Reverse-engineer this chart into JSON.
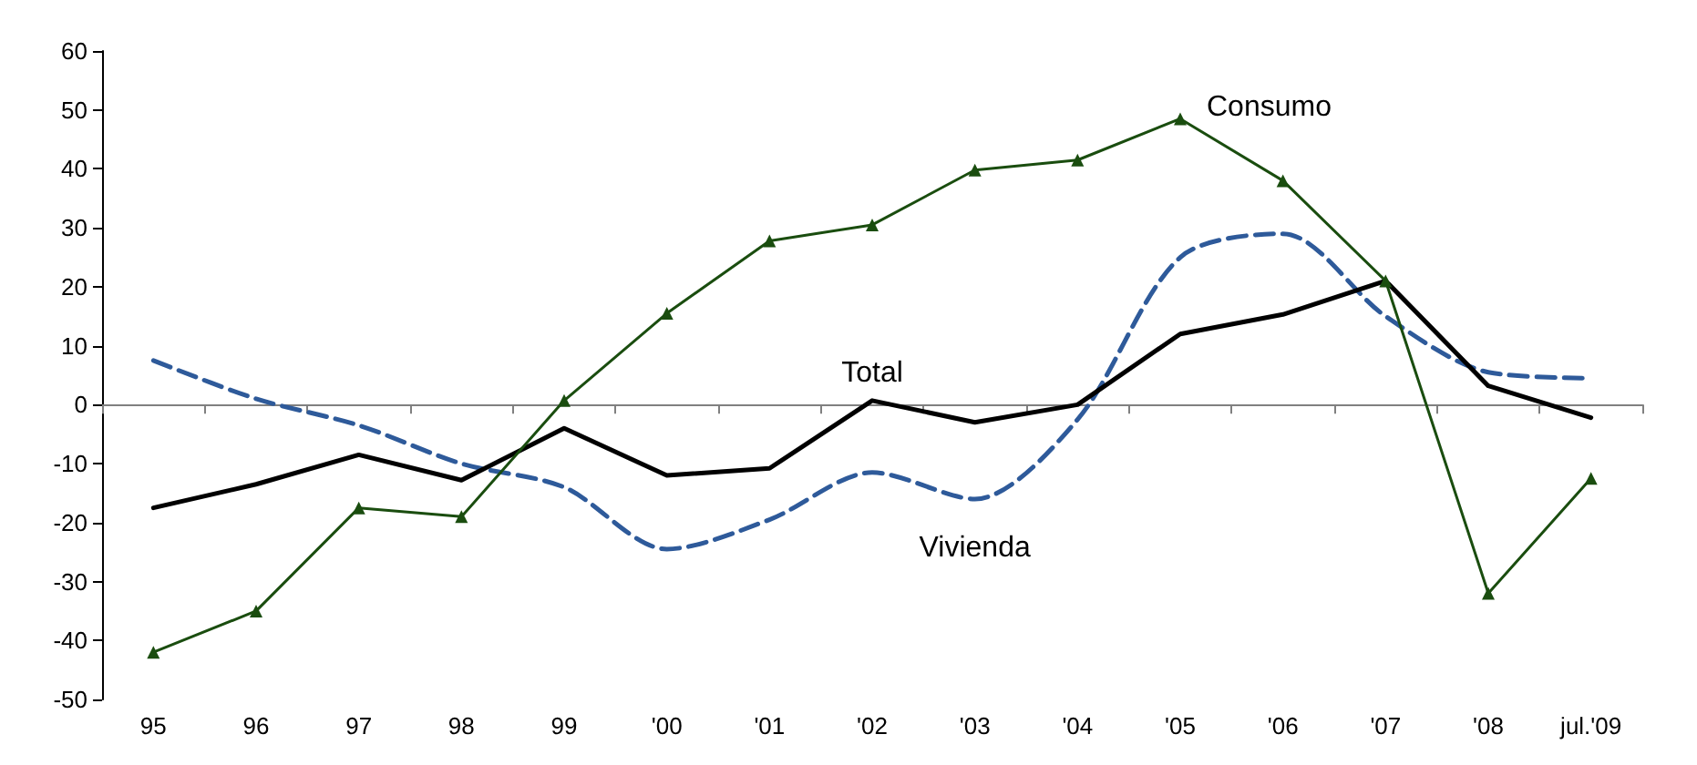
{
  "chart_data": {
    "type": "line",
    "categories": [
      "95",
      "96",
      "97",
      "98",
      "99",
      "'00",
      "'01",
      "'02",
      "'03",
      "'04",
      "'05",
      "'06",
      "'07",
      "'08",
      "jul.'09"
    ],
    "series": [
      {
        "name": "Total",
        "color": "#000000",
        "marker": "none",
        "line_style": "solid",
        "values": [
          -17.5,
          -13.5,
          -8.5,
          -12.8,
          -4,
          -12,
          -10.8,
          0.7,
          -3,
          0,
          12,
          15.3,
          21,
          3.2,
          -2.2
        ]
      },
      {
        "name": "Consumo",
        "color": "#1a4d0f",
        "marker": "triangle",
        "line_style": "solid",
        "values": [
          -42,
          -35,
          -17.5,
          -19,
          0.7,
          15.5,
          27.8,
          30.5,
          39.8,
          41.5,
          48.5,
          38,
          21,
          -32,
          -12.5
        ]
      },
      {
        "name": "Vivienda",
        "color": "#2e5a9a",
        "marker": "none",
        "line_style": "dashed",
        "values": [
          7.5,
          1,
          -3.5,
          -10,
          -14,
          -24.5,
          -19.5,
          -11.5,
          -16,
          -2.5,
          25,
          29,
          15,
          5.5,
          4.5
        ]
      }
    ],
    "ylim": [
      -50,
      60
    ],
    "yticks": [
      -50,
      -40,
      -30,
      -20,
      -10,
      0,
      10,
      20,
      30,
      40,
      50,
      60
    ],
    "legend": false
  }
}
